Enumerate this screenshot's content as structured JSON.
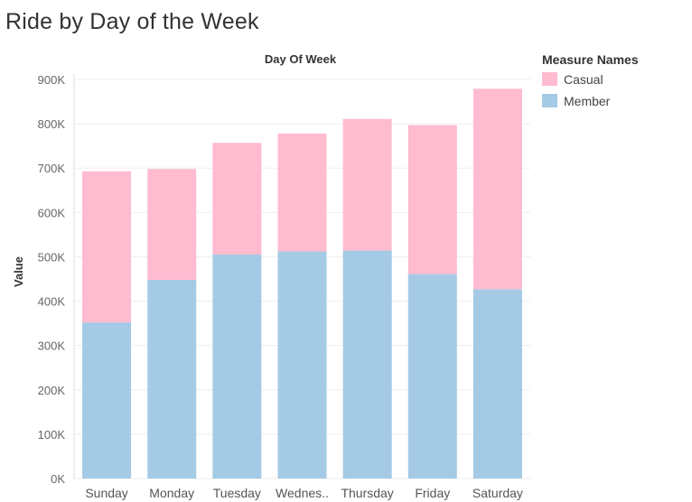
{
  "title": "Ride by Day of the Week",
  "chart_data": {
    "type": "bar",
    "stacked": true,
    "title": "Ride by Day of the Week",
    "xlabel": "Day Of Week",
    "ylabel": "Value",
    "categories": [
      "Sunday",
      "Monday",
      "Tuesday",
      "Wednes..",
      "Thursday",
      "Friday",
      "Saturday"
    ],
    "series": [
      {
        "name": "Member",
        "color": "#a4cae5",
        "values": [
          352000,
          448000,
          505000,
          512000,
          514000,
          461000,
          427000
        ]
      },
      {
        "name": "Casual",
        "color": "#ffbbcf",
        "values": [
          341000,
          250000,
          252000,
          266000,
          297000,
          336000,
          452000
        ]
      }
    ],
    "ylim": [
      0,
      900000
    ],
    "yticks": [
      0,
      100000,
      200000,
      300000,
      400000,
      500000,
      600000,
      700000,
      800000,
      900000
    ],
    "ytick_labels": [
      "0K",
      "100K",
      "200K",
      "300K",
      "400K",
      "500K",
      "600K",
      "700K",
      "800K",
      "900K"
    ],
    "grid": true,
    "legend": {
      "title": "Measure Names",
      "position": "top-right",
      "items": [
        {
          "name": "Casual",
          "color": "#ffbbcf"
        },
        {
          "name": "Member",
          "color": "#a4cae5"
        }
      ]
    }
  }
}
